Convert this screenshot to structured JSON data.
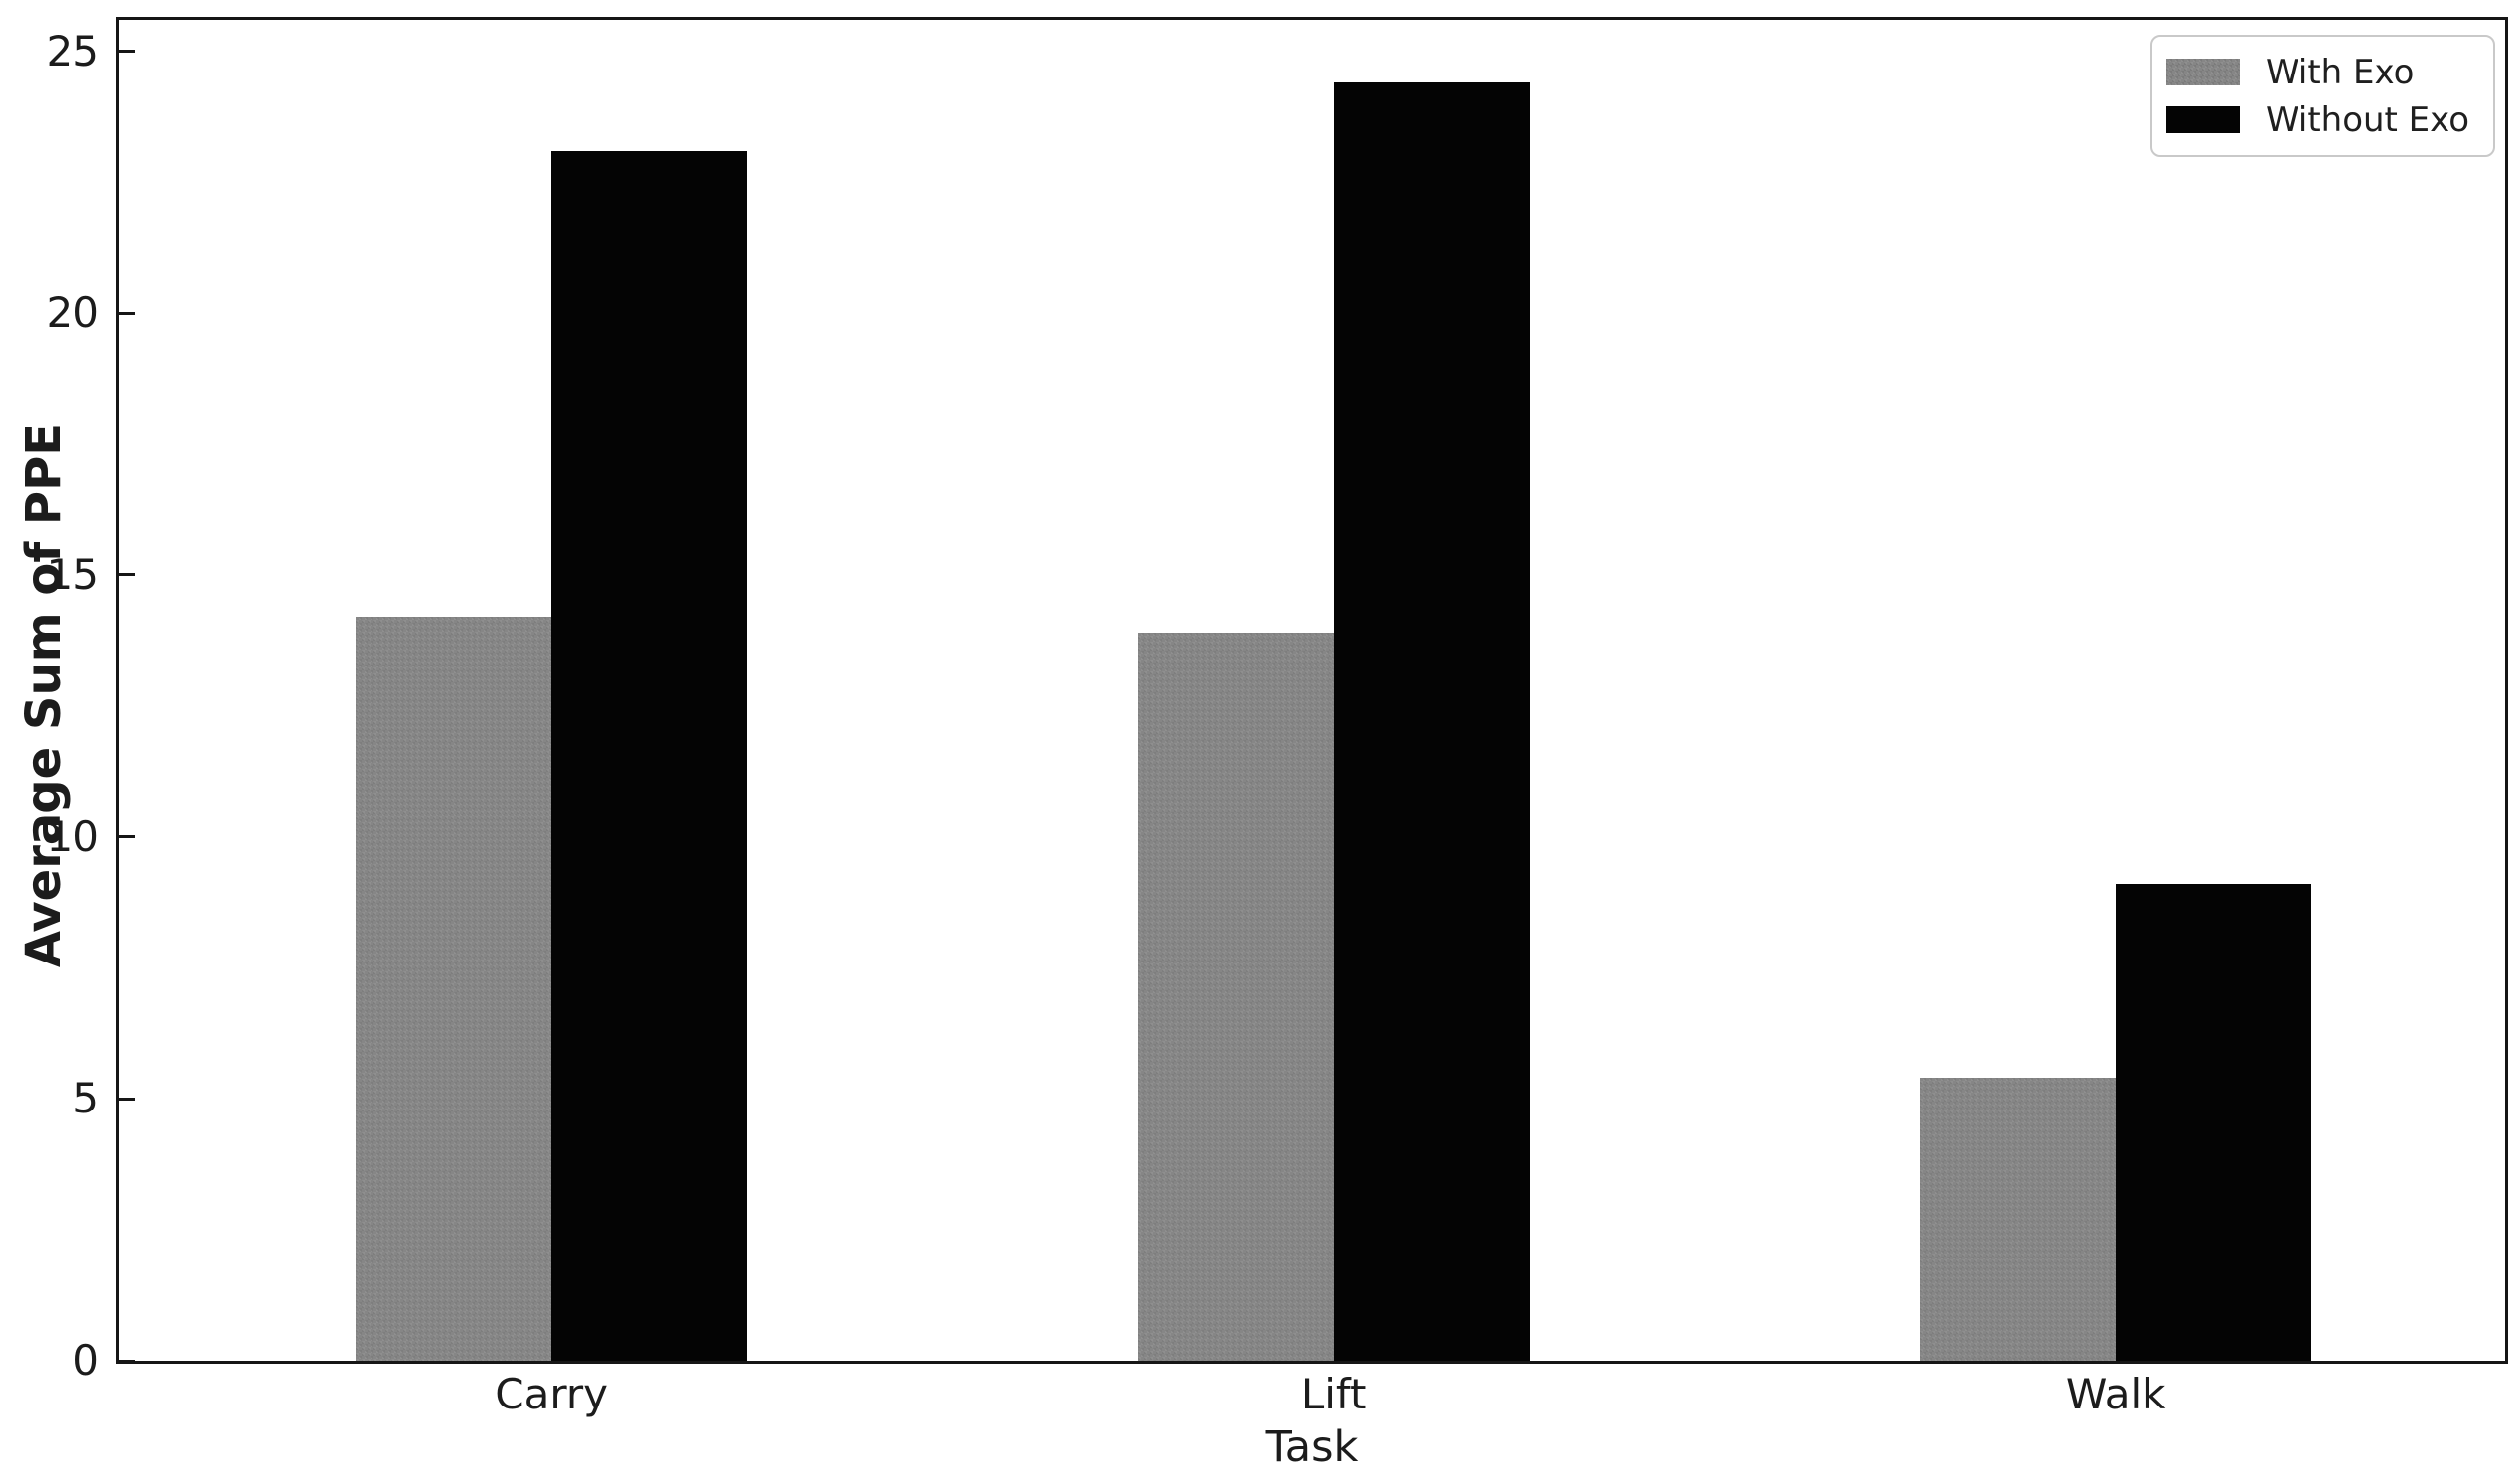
{
  "chart_data": {
    "type": "bar",
    "title": "",
    "categories": [
      "Carry",
      "Lift",
      "Walk"
    ],
    "series": [
      {
        "name": "With Exo",
        "color": "#868686",
        "values": [
          14.2,
          13.9,
          5.4
        ]
      },
      {
        "name": "Without Exo",
        "color": "#040404",
        "values": [
          23.1,
          24.4,
          9.1
        ]
      }
    ],
    "xlabel": "Task",
    "ylabel": "Average Sum of PPE",
    "ylim": [
      0,
      25.6
    ],
    "yticks": [
      0,
      5,
      10,
      15,
      20,
      25
    ],
    "bar_width_units": 0.25,
    "legend_position": "upper right",
    "legend_labels": [
      "With Exo",
      "Without Exo"
    ],
    "grid": false,
    "background_color": "#ffffff",
    "spine_color": "#161616"
  }
}
